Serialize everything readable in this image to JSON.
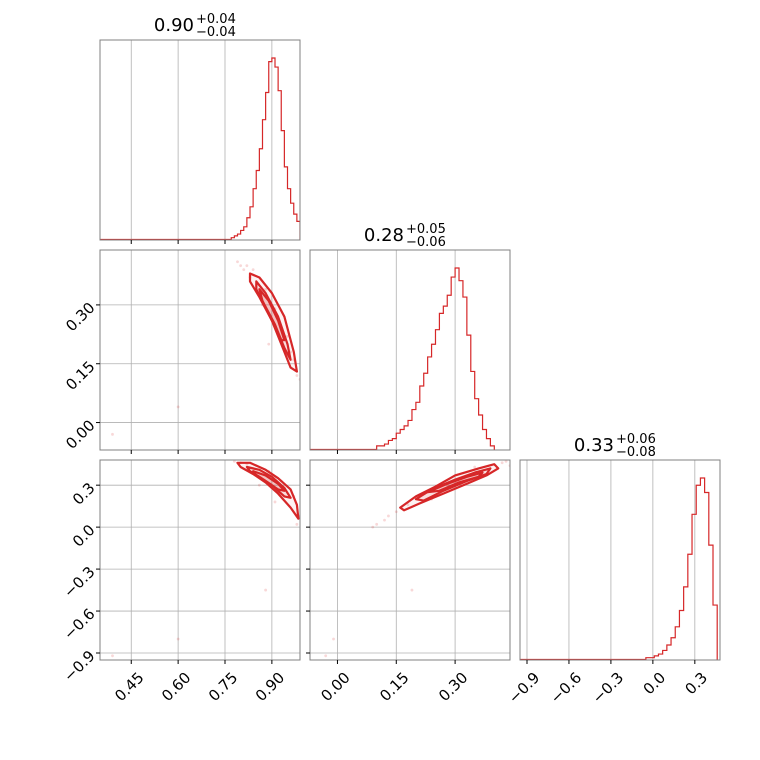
{
  "chart_data": {
    "type": "corner",
    "color": "#d62728",
    "grid": true,
    "parameters": [
      {
        "range": [
          0.35,
          0.99
        ],
        "ticks": [
          0.45,
          0.6,
          0.75,
          0.9
        ],
        "tick_labels": [
          "0.45",
          "0.60",
          "0.75",
          "0.90"
        ]
      },
      {
        "range": [
          -0.07,
          0.44
        ],
        "ticks": [
          0.0,
          0.15,
          0.3
        ],
        "tick_labels": [
          "0.00",
          "0.15",
          "0.30"
        ]
      },
      {
        "range": [
          -0.95,
          0.48
        ],
        "ticks": [
          -0.9,
          -0.6,
          -0.3,
          0.0,
          0.3
        ],
        "tick_labels": [
          "−0.9",
          "−0.6",
          "−0.3",
          "0.0",
          "0.3"
        ]
      }
    ],
    "titles": [
      {
        "value": "0.90",
        "plus": "+0.04",
        "minus": "−0.04"
      },
      {
        "value": "0.28",
        "plus": "+0.05",
        "minus": "−0.06"
      },
      {
        "value": "0.33",
        "plus": "+0.06",
        "minus": "−0.08"
      }
    ],
    "histograms": [
      {
        "bin_edges": [
          0.77,
          0.78,
          0.79,
          0.8,
          0.81,
          0.82,
          0.83,
          0.84,
          0.85,
          0.86,
          0.87,
          0.88,
          0.89,
          0.9,
          0.91,
          0.92,
          0.93,
          0.94,
          0.95,
          0.96,
          0.97,
          0.98,
          0.99
        ],
        "counts": [
          0.01,
          0.02,
          0.03,
          0.05,
          0.07,
          0.12,
          0.18,
          0.28,
          0.38,
          0.5,
          0.66,
          0.81,
          0.98,
          1.0,
          0.95,
          0.82,
          0.6,
          0.4,
          0.28,
          0.2,
          0.14,
          0.1
        ]
      },
      {
        "bin_edges": [
          0.1,
          0.11,
          0.12,
          0.13,
          0.14,
          0.15,
          0.16,
          0.17,
          0.18,
          0.19,
          0.2,
          0.21,
          0.22,
          0.23,
          0.24,
          0.25,
          0.26,
          0.27,
          0.28,
          0.29,
          0.3,
          0.31,
          0.32,
          0.33,
          0.34,
          0.35,
          0.36,
          0.37,
          0.38,
          0.39,
          0.4
        ],
        "counts": [
          0.02,
          0.02,
          0.03,
          0.05,
          0.06,
          0.09,
          0.11,
          0.13,
          0.16,
          0.22,
          0.26,
          0.35,
          0.42,
          0.51,
          0.58,
          0.66,
          0.75,
          0.79,
          0.85,
          0.95,
          1.0,
          0.93,
          0.84,
          0.63,
          0.43,
          0.28,
          0.19,
          0.11,
          0.06,
          0.02
        ]
      },
      {
        "bin_edges": [
          -0.05,
          -0.02,
          0.01,
          0.04,
          0.07,
          0.1,
          0.13,
          0.16,
          0.19,
          0.22,
          0.25,
          0.28,
          0.31,
          0.34,
          0.37,
          0.4,
          0.43,
          0.46
        ],
        "counts": [
          0.01,
          0.01,
          0.02,
          0.03,
          0.05,
          0.08,
          0.12,
          0.18,
          0.27,
          0.4,
          0.58,
          0.8,
          0.96,
          1.0,
          0.92,
          0.63,
          0.3
        ]
      }
    ],
    "pairs": [
      {
        "x_param": 0,
        "y_param": 1,
        "contours": [
          {
            "points": [
              [
                0.83,
                0.38
              ],
              [
                0.86,
                0.37
              ],
              [
                0.9,
                0.33
              ],
              [
                0.94,
                0.27
              ],
              [
                0.97,
                0.18
              ],
              [
                0.98,
                0.13
              ],
              [
                0.96,
                0.14
              ],
              [
                0.93,
                0.2
              ],
              [
                0.9,
                0.26
              ],
              [
                0.86,
                0.32
              ],
              [
                0.83,
                0.36
              ]
            ]
          },
          {
            "points": [
              [
                0.85,
                0.36
              ],
              [
                0.88,
                0.33
              ],
              [
                0.92,
                0.27
              ],
              [
                0.95,
                0.2
              ],
              [
                0.96,
                0.16
              ],
              [
                0.94,
                0.19
              ],
              [
                0.91,
                0.25
              ],
              [
                0.87,
                0.31
              ],
              [
                0.85,
                0.34
              ]
            ]
          },
          {
            "points": [
              [
                0.86,
                0.34
              ],
              [
                0.89,
                0.31
              ],
              [
                0.92,
                0.26
              ],
              [
                0.94,
                0.21
              ],
              [
                0.93,
                0.21
              ],
              [
                0.9,
                0.26
              ],
              [
                0.87,
                0.31
              ]
            ]
          }
        ],
        "samples": [
          [
            0.8,
            0.4
          ],
          [
            0.81,
            0.39
          ],
          [
            0.79,
            0.41
          ],
          [
            0.82,
            0.4
          ],
          [
            0.84,
            0.39
          ],
          [
            0.83,
            0.37
          ],
          [
            0.85,
            0.35
          ],
          [
            0.88,
            0.34
          ],
          [
            0.91,
            0.29
          ],
          [
            0.93,
            0.24
          ],
          [
            0.95,
            0.22
          ],
          [
            0.97,
            0.16
          ],
          [
            0.98,
            0.12
          ],
          [
            0.99,
            0.11
          ],
          [
            0.96,
            0.18
          ],
          [
            0.87,
            0.3
          ],
          [
            0.89,
            0.2
          ],
          [
            0.6,
            0.04
          ],
          [
            0.39,
            -0.03
          ]
        ]
      },
      {
        "x_param": 0,
        "y_param": 2,
        "contours": [
          {
            "points": [
              [
                0.79,
                0.46
              ],
              [
                0.83,
                0.46
              ],
              [
                0.88,
                0.41
              ],
              [
                0.92,
                0.35
              ],
              [
                0.96,
                0.27
              ],
              [
                0.98,
                0.16
              ],
              [
                0.985,
                0.06
              ],
              [
                0.96,
                0.14
              ],
              [
                0.92,
                0.24
              ],
              [
                0.88,
                0.32
              ],
              [
                0.84,
                0.38
              ],
              [
                0.8,
                0.43
              ]
            ]
          },
          {
            "points": [
              [
                0.82,
                0.43
              ],
              [
                0.86,
                0.41
              ],
              [
                0.9,
                0.36
              ],
              [
                0.94,
                0.28
              ],
              [
                0.96,
                0.21
              ],
              [
                0.94,
                0.22
              ],
              [
                0.9,
                0.3
              ],
              [
                0.86,
                0.36
              ],
              [
                0.83,
                0.4
              ]
            ]
          },
          {
            "points": [
              [
                0.84,
                0.4
              ],
              [
                0.88,
                0.37
              ],
              [
                0.92,
                0.31
              ],
              [
                0.94,
                0.26
              ],
              [
                0.92,
                0.27
              ],
              [
                0.88,
                0.33
              ],
              [
                0.85,
                0.37
              ]
            ]
          }
        ],
        "samples": [
          [
            0.78,
            0.47
          ],
          [
            0.8,
            0.46
          ],
          [
            0.82,
            0.45
          ],
          [
            0.85,
            0.44
          ],
          [
            0.89,
            0.4
          ],
          [
            0.93,
            0.33
          ],
          [
            0.97,
            0.22
          ],
          [
            0.99,
            0.08
          ],
          [
            0.98,
            0.02
          ],
          [
            0.91,
            0.18
          ],
          [
            0.86,
            0.3
          ],
          [
            0.88,
            -0.45
          ],
          [
            0.6,
            -0.8
          ],
          [
            0.39,
            -0.92
          ]
        ]
      },
      {
        "x_param": 1,
        "y_param": 2,
        "contours": [
          {
            "points": [
              [
                0.16,
                0.14
              ],
              [
                0.2,
                0.22
              ],
              [
                0.25,
                0.29
              ],
              [
                0.3,
                0.37
              ],
              [
                0.36,
                0.42
              ],
              [
                0.4,
                0.45
              ],
              [
                0.41,
                0.42
              ],
              [
                0.38,
                0.37
              ],
              [
                0.33,
                0.31
              ],
              [
                0.27,
                0.24
              ],
              [
                0.21,
                0.17
              ],
              [
                0.17,
                0.12
              ]
            ]
          },
          {
            "points": [
              [
                0.2,
                0.2
              ],
              [
                0.24,
                0.27
              ],
              [
                0.3,
                0.34
              ],
              [
                0.35,
                0.39
              ],
              [
                0.39,
                0.42
              ],
              [
                0.38,
                0.38
              ],
              [
                0.33,
                0.33
              ],
              [
                0.27,
                0.26
              ],
              [
                0.22,
                0.19
              ]
            ]
          },
          {
            "points": [
              [
                0.23,
                0.25
              ],
              [
                0.28,
                0.31
              ],
              [
                0.33,
                0.36
              ],
              [
                0.37,
                0.39
              ],
              [
                0.36,
                0.36
              ],
              [
                0.31,
                0.32
              ],
              [
                0.26,
                0.26
              ]
            ]
          }
        ],
        "samples": [
          [
            0.09,
            0.0
          ],
          [
            0.1,
            0.02
          ],
          [
            0.12,
            0.05
          ],
          [
            0.13,
            0.08
          ],
          [
            0.15,
            0.11
          ],
          [
            0.18,
            0.16
          ],
          [
            0.35,
            0.43
          ],
          [
            0.42,
            0.46
          ],
          [
            0.43,
            0.47
          ],
          [
            0.44,
            0.44
          ],
          [
            0.28,
            0.3
          ],
          [
            0.24,
            0.2
          ],
          [
            0.19,
            -0.45
          ],
          [
            -0.01,
            -0.8
          ],
          [
            -0.03,
            -0.92
          ]
        ]
      }
    ]
  }
}
